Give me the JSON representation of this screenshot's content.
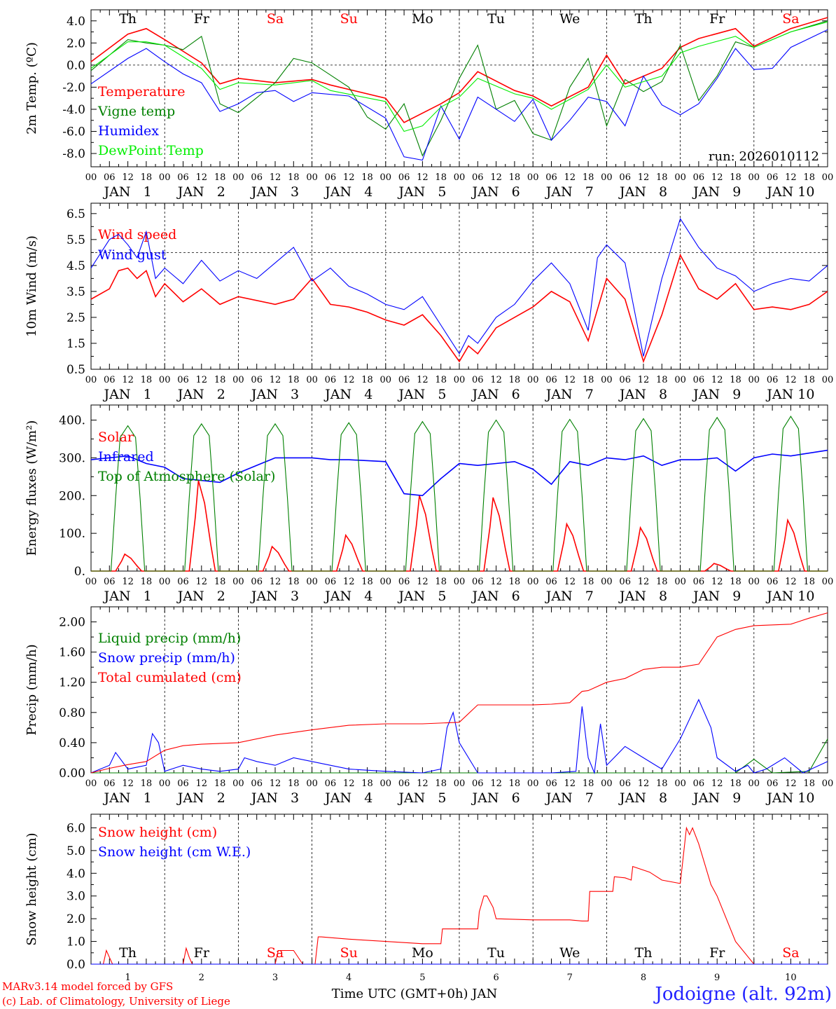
{
  "title": "Jodoigne (alt. 92m)",
  "footer": {
    "credit_line1": "MARv3.14 model forced by GFS",
    "credit_line2": "(c) Lab. of Climatology, University of Liege",
    "xlabel": "Time UTC (GMT+0h) JAN",
    "location": "Jodoigne (alt. 92m)"
  },
  "colors": {
    "red": "#ff0000",
    "green": "#008000",
    "blue": "#0000ff",
    "lightgreen": "#00ee00",
    "black": "#000000"
  },
  "time_axis": {
    "days": [
      "1",
      "2",
      "3",
      "4",
      "5",
      "6",
      "7",
      "8",
      "9",
      "10"
    ],
    "day_labels": [
      "JAN   1",
      "JAN   2",
      "JAN   3",
      "JAN   4",
      "JAN   5",
      "JAN   6",
      "JAN   7",
      "JAN   8",
      "JAN   9",
      "JAN 10"
    ],
    "hour_ticks": [
      "00",
      "06",
      "12",
      "18"
    ],
    "final_tick": "00",
    "weekdays": [
      "Th",
      "Fr",
      "Sa",
      "Su",
      "Mo",
      "Tu",
      "We",
      "Th",
      "Fr",
      "Sa"
    ],
    "weekend_flags": [
      false,
      false,
      true,
      true,
      false,
      false,
      false,
      false,
      false,
      true
    ]
  },
  "chart_data": [
    {
      "id": "temp",
      "type": "line",
      "ylabel": "2m Temp. (ºC)",
      "ylim": [
        -9.2,
        5.0
      ],
      "yticks": [
        4.0,
        2.0,
        0.0,
        -2.0,
        -4.0,
        -6.0,
        -8.0
      ],
      "ytick_labels": [
        "4.0",
        "2.0",
        "0.0",
        "-2.0",
        "-4.0",
        "-6.0",
        "-8.0"
      ],
      "reference_line": 0.0,
      "run_label": "run: 2026010112",
      "series": [
        {
          "name": "Temperature",
          "color": "red",
          "x": [
            0,
            12,
            18,
            24,
            36,
            42,
            48,
            60,
            72,
            78,
            96,
            102,
            114,
            120,
            126,
            138,
            144,
            150,
            162,
            168,
            174,
            186,
            192,
            198,
            210,
            216,
            228,
            240
          ],
          "y": [
            0.3,
            2.8,
            3.3,
            2.3,
            0.2,
            -1.7,
            -1.2,
            -1.6,
            -1.3,
            -1.8,
            -3.0,
            -5.2,
            -3.5,
            -2.5,
            -0.6,
            -2.3,
            -2.8,
            -3.7,
            -2.0,
            0.9,
            -1.7,
            -0.3,
            1.6,
            2.4,
            3.3,
            1.7,
            3.3,
            4.3
          ]
        },
        {
          "name": "Vigne temp",
          "color": "green",
          "x": [
            0,
            12,
            18,
            24,
            30,
            36,
            42,
            48,
            60,
            66,
            72,
            84,
            90,
            96,
            102,
            108,
            114,
            120,
            126,
            132,
            138,
            144,
            150,
            156,
            162,
            168,
            174,
            180,
            186,
            192,
            198,
            204,
            210,
            216,
            228,
            240
          ],
          "y": [
            -0.5,
            2.3,
            2.0,
            1.8,
            1.4,
            2.6,
            -3.5,
            -4.3,
            -1.6,
            0.6,
            0.2,
            -2.0,
            -4.7,
            -5.8,
            -3.5,
            -8.2,
            -5.0,
            -1.2,
            1.8,
            -4.0,
            -3.2,
            -6.2,
            -6.8,
            -2.0,
            0.6,
            -5.5,
            -1.3,
            -2.4,
            -1.5,
            1.8,
            -3.2,
            -1.0,
            2.1,
            1.6,
            3.0,
            4.0
          ]
        },
        {
          "name": "Humidex",
          "color": "blue",
          "x": [
            0,
            12,
            18,
            24,
            30,
            36,
            42,
            48,
            54,
            60,
            66,
            72,
            84,
            96,
            102,
            108,
            114,
            120,
            126,
            138,
            144,
            150,
            156,
            162,
            168,
            174,
            180,
            186,
            192,
            198,
            204,
            210,
            216,
            222,
            228,
            240
          ],
          "y": [
            -1.7,
            0.6,
            1.5,
            0.3,
            -0.8,
            -1.6,
            -4.2,
            -3.5,
            -2.5,
            -2.3,
            -3.3,
            -2.5,
            -2.8,
            -4.8,
            -8.3,
            -8.6,
            -3.7,
            -6.7,
            -2.9,
            -5.1,
            -3.1,
            -6.8,
            -5.0,
            -2.9,
            -3.3,
            -5.5,
            -1.0,
            -3.6,
            -4.5,
            -3.5,
            -1.2,
            1.5,
            -0.4,
            -0.3,
            1.6,
            3.2
          ]
        },
        {
          "name": "DewPoint Temp",
          "color": "lightgreen",
          "x": [
            0,
            12,
            18,
            24,
            36,
            42,
            48,
            60,
            72,
            78,
            96,
            102,
            108,
            114,
            120,
            126,
            138,
            144,
            150,
            162,
            168,
            174,
            186,
            192,
            198,
            210,
            216,
            228,
            240
          ],
          "y": [
            -0.3,
            2.1,
            2.1,
            1.8,
            -0.3,
            -2.2,
            -1.6,
            -1.8,
            -1.4,
            -2.3,
            -3.3,
            -6.0,
            -5.5,
            -3.8,
            -2.9,
            -1.2,
            -2.6,
            -3.0,
            -4.0,
            -2.2,
            0.0,
            -2.0,
            -1.0,
            1.1,
            1.7,
            2.6,
            1.6,
            3.0,
            3.9
          ]
        }
      ]
    },
    {
      "id": "wind",
      "type": "line",
      "ylabel": "10m Wind (m/s)",
      "ylim": [
        0.5,
        6.9
      ],
      "yticks": [
        6.5,
        5.5,
        4.5,
        3.5,
        2.5,
        1.5,
        0.5
      ],
      "ytick_labels": [
        "6.5",
        "5.5",
        "4.5",
        "3.5",
        "2.5",
        "1.5",
        "0.5"
      ],
      "reference_line": 5.0,
      "series": [
        {
          "name": "Wind speed",
          "color": "red",
          "x": [
            0,
            6,
            9,
            12,
            15,
            18,
            21,
            24,
            30,
            36,
            42,
            48,
            60,
            66,
            72,
            78,
            84,
            90,
            96,
            102,
            108,
            114,
            120,
            123,
            126,
            132,
            138,
            144,
            150,
            156,
            162,
            168,
            174,
            180,
            186,
            192,
            198,
            204,
            210,
            216,
            222,
            228,
            234,
            240
          ],
          "y": [
            3.2,
            3.6,
            4.3,
            4.4,
            4.0,
            4.3,
            3.3,
            3.8,
            3.1,
            3.6,
            3.0,
            3.3,
            3.0,
            3.2,
            4.0,
            3.0,
            2.9,
            2.7,
            2.4,
            2.2,
            2.6,
            1.8,
            0.8,
            1.4,
            1.1,
            2.1,
            2.5,
            2.9,
            3.5,
            3.1,
            1.6,
            4.0,
            3.2,
            0.8,
            2.6,
            4.9,
            3.6,
            3.2,
            3.8,
            2.8,
            2.9,
            2.8,
            3.0,
            3.5
          ]
        },
        {
          "name": "Wind gust",
          "color": "blue",
          "x": [
            0,
            6,
            9,
            12,
            15,
            18,
            21,
            24,
            30,
            36,
            42,
            48,
            54,
            60,
            66,
            72,
            78,
            84,
            90,
            96,
            102,
            108,
            114,
            120,
            123,
            126,
            132,
            138,
            144,
            150,
            156,
            162,
            165,
            168,
            174,
            180,
            186,
            192,
            198,
            204,
            210,
            216,
            222,
            228,
            234,
            240
          ],
          "y": [
            4.4,
            5.5,
            5.7,
            5.3,
            4.8,
            5.8,
            4.0,
            4.4,
            3.8,
            4.7,
            3.9,
            4.3,
            4.0,
            4.6,
            5.2,
            3.9,
            4.4,
            3.7,
            3.4,
            3.0,
            2.8,
            3.3,
            2.2,
            1.1,
            1.8,
            1.5,
            2.5,
            3.0,
            3.9,
            4.6,
            3.8,
            2.0,
            4.8,
            5.3,
            4.6,
            1.0,
            4.0,
            6.3,
            5.2,
            4.4,
            4.1,
            3.5,
            3.8,
            4.0,
            3.9,
            4.5
          ]
        }
      ]
    },
    {
      "id": "energy",
      "type": "line",
      "ylabel": "Energy fluxes (W/m²)",
      "ylim": [
        0,
        440
      ],
      "yticks": [
        400,
        300,
        200,
        100,
        0
      ],
      "ytick_labels": [
        "400.",
        "300.",
        "200.",
        "100.",
        "0."
      ],
      "series": [
        {
          "name": "Solar",
          "color": "red",
          "day_peaks": [
            45,
            240,
            65,
            95,
            200,
            195,
            125,
            115,
            20,
            135
          ]
        },
        {
          "name": "Infrared",
          "color": "blue",
          "x": [
            0,
            12,
            18,
            24,
            30,
            36,
            42,
            48,
            60,
            72,
            78,
            84,
            96,
            102,
            108,
            114,
            120,
            126,
            132,
            138,
            144,
            150,
            156,
            162,
            168,
            174,
            180,
            186,
            192,
            198,
            204,
            210,
            216,
            222,
            228,
            240
          ],
          "y": [
            295,
            305,
            285,
            275,
            245,
            240,
            235,
            260,
            300,
            300,
            295,
            295,
            290,
            205,
            200,
            245,
            285,
            280,
            285,
            290,
            270,
            230,
            290,
            280,
            300,
            295,
            305,
            280,
            295,
            295,
            300,
            265,
            300,
            310,
            305,
            320
          ]
        },
        {
          "name": "Top of Atmosphere (Solar)",
          "color": "green",
          "day_peaks": [
            385,
            390,
            390,
            393,
            396,
            400,
            402,
            404,
            407,
            410
          ]
        }
      ]
    },
    {
      "id": "precip",
      "type": "line",
      "ylabel": "Precip (mm/h)",
      "ylim": [
        0.0,
        2.2
      ],
      "yticks": [
        2.0,
        1.6,
        1.2,
        0.8,
        0.4,
        0.0
      ],
      "ytick_labels": [
        "2.00",
        "1.60",
        "1.20",
        "0.80",
        "0.40",
        "0.00"
      ],
      "series": [
        {
          "name": "Liquid precip (mm/h)",
          "color": "green",
          "x": [
            0,
            210,
            216,
            222,
            234,
            240
          ],
          "y": [
            0.0,
            0.0,
            0.18,
            0.0,
            0.02,
            0.45
          ]
        },
        {
          "name": "Snow precip (mm/h)",
          "color": "blue",
          "x": [
            0,
            6,
            8,
            12,
            18,
            20,
            22,
            24,
            30,
            36,
            42,
            48,
            50,
            54,
            60,
            66,
            72,
            78,
            84,
            96,
            108,
            114,
            116,
            118,
            120,
            126,
            132,
            150,
            158,
            160,
            162,
            164,
            166,
            168,
            174,
            180,
            186,
            192,
            198,
            202,
            204,
            210,
            214,
            216,
            220,
            226,
            232,
            240
          ],
          "y": [
            0.0,
            0.1,
            0.27,
            0.05,
            0.1,
            0.52,
            0.4,
            0.02,
            0.1,
            0.05,
            0.02,
            0.05,
            0.2,
            0.15,
            0.1,
            0.2,
            0.15,
            0.1,
            0.05,
            0.02,
            0.0,
            0.05,
            0.6,
            0.8,
            0.4,
            0.0,
            0.0,
            0.0,
            0.02,
            0.88,
            0.2,
            0.0,
            0.65,
            0.1,
            0.35,
            0.2,
            0.05,
            0.45,
            0.97,
            0.6,
            0.2,
            0.02,
            0.1,
            0.0,
            0.05,
            0.2,
            0.0,
            0.15
          ]
        },
        {
          "name": "Total cumulated (cm)",
          "color": "red",
          "x": [
            0,
            6,
            12,
            18,
            24,
            30,
            36,
            48,
            60,
            72,
            84,
            96,
            108,
            120,
            126,
            132,
            138,
            144,
            150,
            156,
            160,
            162,
            168,
            174,
            180,
            186,
            192,
            198,
            204,
            210,
            216,
            228,
            234,
            240
          ],
          "y": [
            0.0,
            0.06,
            0.11,
            0.15,
            0.3,
            0.36,
            0.38,
            0.4,
            0.5,
            0.57,
            0.63,
            0.65,
            0.65,
            0.67,
            0.9,
            0.9,
            0.9,
            0.9,
            0.91,
            0.93,
            1.08,
            1.09,
            1.2,
            1.25,
            1.37,
            1.4,
            1.4,
            1.44,
            1.8,
            1.9,
            1.95,
            1.97,
            2.05,
            2.12
          ]
        }
      ]
    },
    {
      "id": "snow",
      "type": "line",
      "ylabel": "Snow height (cm)",
      "ylim": [
        0.0,
        6.6
      ],
      "yticks": [
        6.0,
        5.0,
        4.0,
        3.0,
        2.0,
        1.0,
        0.0
      ],
      "ytick_labels": [
        "6.0",
        "5.0",
        "4.0",
        "3.0",
        "2.0",
        "1.0",
        "0.0"
      ],
      "series": [
        {
          "name": "Snow height (cm)",
          "color": "red",
          "x": [
            0,
            4,
            5,
            6,
            7,
            30,
            31,
            32,
            33,
            35,
            36,
            60,
            61,
            66,
            67,
            69,
            70,
            72,
            73,
            74,
            75,
            84,
            96,
            108,
            114,
            114.5,
            120,
            120.5,
            126,
            126.5,
            128,
            129,
            131,
            132,
            144,
            156,
            160,
            162,
            162.5,
            170,
            170.5,
            174,
            176,
            176.5,
            182,
            186,
            192,
            194,
            195,
            196,
            198,
            202,
            204,
            210,
            216,
            240
          ],
          "y": [
            0,
            0,
            0.6,
            0.3,
            0,
            0,
            0.7,
            0.3,
            0,
            0,
            0,
            0,
            0.6,
            0.6,
            0.4,
            0,
            0,
            0,
            0,
            1.2,
            1.2,
            1.1,
            1.0,
            0.9,
            0.9,
            1.55,
            1.55,
            1.55,
            1.55,
            2.3,
            3.0,
            3.0,
            2.5,
            2.0,
            1.95,
            1.95,
            1.9,
            1.9,
            3.2,
            3.2,
            3.85,
            3.8,
            3.7,
            4.3,
            4.05,
            3.7,
            3.55,
            6.0,
            5.7,
            6.0,
            5.3,
            3.5,
            3.0,
            1.0,
            0,
            0
          ]
        },
        {
          "name": "Snow height (cm W.E.)",
          "color": "blue",
          "x": [
            0,
            240
          ],
          "y": [
            0,
            0
          ]
        }
      ]
    }
  ]
}
